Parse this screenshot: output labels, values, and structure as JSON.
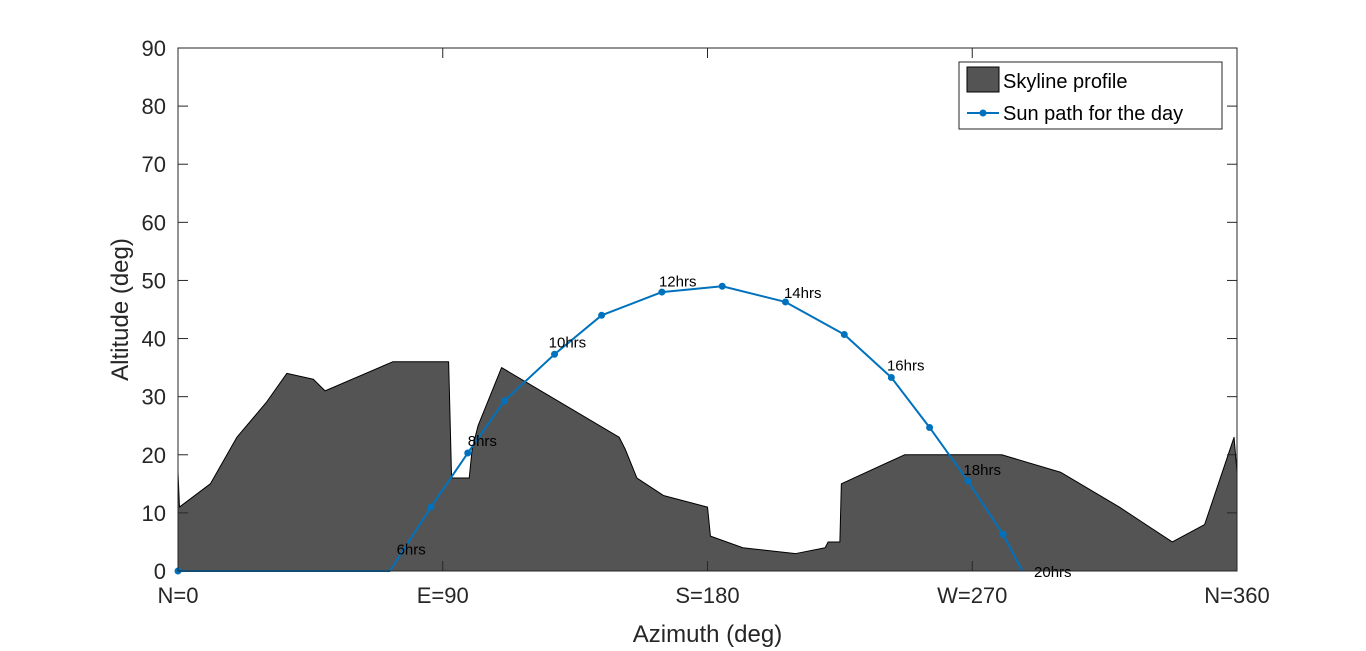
{
  "chart_data": {
    "type": "area",
    "title": "",
    "xlabel": "Azimuth (deg)",
    "ylabel": "Altitude (deg)",
    "xlim": [
      0,
      360
    ],
    "ylim": [
      0,
      90
    ],
    "grid": false,
    "legend_position": "top-right",
    "x_ticks": [
      {
        "value": 0,
        "label": "N=0"
      },
      {
        "value": 90,
        "label": "E=90"
      },
      {
        "value": 180,
        "label": "S=180"
      },
      {
        "value": 270,
        "label": "W=270"
      },
      {
        "value": 360,
        "label": "N=360"
      }
    ],
    "y_ticks": [
      0,
      10,
      20,
      30,
      40,
      50,
      60,
      70,
      80,
      90
    ],
    "colors": {
      "skyline_fill": "#545454",
      "skyline_edge": "#000000",
      "sun_path": "#0072bd",
      "axes": "#262626"
    },
    "series": [
      {
        "name": "Skyline profile",
        "type": "area",
        "x": [
          0,
          0.5,
          11,
          20,
          30,
          37,
          46,
          50,
          73,
          92,
          93,
          99,
          100,
          102,
          110,
          150,
          152,
          156,
          165,
          180,
          181,
          192,
          210,
          220,
          221,
          224,
          225,
          225.5,
          247,
          260,
          265,
          280,
          300,
          320,
          338,
          349,
          359,
          360
        ],
        "y": [
          17,
          11,
          15,
          23,
          29,
          34,
          33,
          31,
          36,
          36,
          16,
          16,
          21,
          25,
          35,
          23,
          21,
          16,
          13,
          11,
          6,
          4,
          3,
          4,
          5,
          5,
          5,
          15,
          20,
          20,
          20,
          20,
          17,
          11,
          5,
          8,
          23,
          17
        ]
      },
      {
        "name": "Sun path for the day",
        "type": "line",
        "x": [
          0,
          72,
          86,
          98.5,
          111,
          128,
          144,
          164.5,
          185,
          206.5,
          226.5,
          242.5,
          255.5,
          268.5,
          280.5,
          287
        ],
        "y": [
          0,
          0,
          11,
          20.3,
          29.3,
          37.3,
          44,
          48,
          49,
          46.3,
          40.7,
          33.3,
          24.7,
          15.5,
          6.3,
          0
        ],
        "markers_x": [
          0,
          86,
          98.5,
          111,
          128,
          144,
          164.5,
          185,
          206.5,
          226.5,
          242.5,
          255.5,
          268.5,
          280.5
        ],
        "markers_y": [
          0,
          11,
          20.3,
          29.3,
          37.3,
          44,
          48,
          49,
          46.3,
          40.7,
          33.3,
          24.7,
          15.5,
          6.3
        ]
      }
    ],
    "annotations": [
      {
        "text": "6hrs",
        "x": 74.3,
        "y": 2.8
      },
      {
        "text": "8hrs",
        "x": 98.5,
        "y": 21.5
      },
      {
        "text": "10hrs",
        "x": 126,
        "y": 38.5
      },
      {
        "text": "12hrs",
        "x": 163.5,
        "y": 49
      },
      {
        "text": "14hrs",
        "x": 206,
        "y": 47
      },
      {
        "text": "16hrs",
        "x": 241,
        "y": 34.5
      },
      {
        "text": "18hrs",
        "x": 267,
        "y": 16.5
      },
      {
        "text": "20hrs",
        "x": 291,
        "y": -1
      }
    ]
  }
}
